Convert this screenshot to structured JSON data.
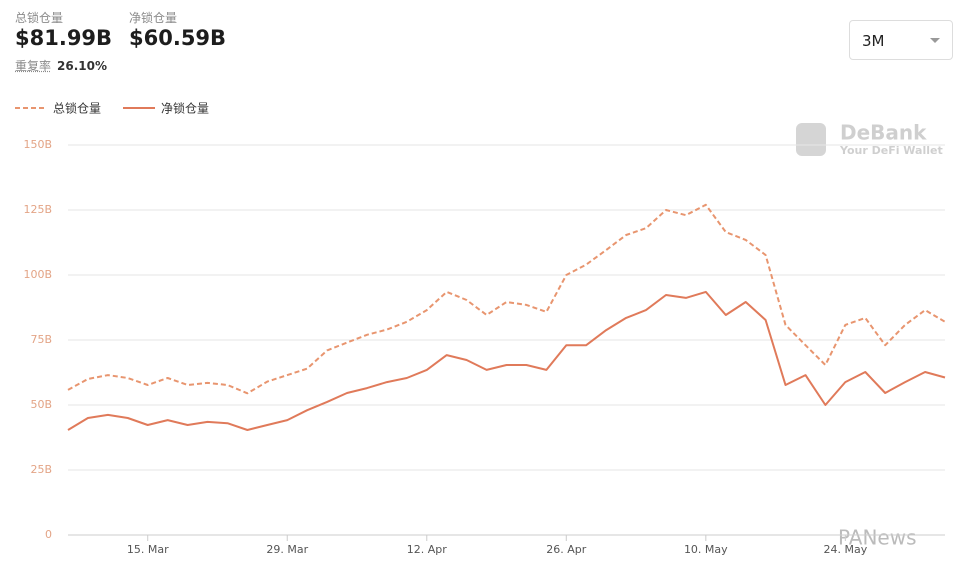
{
  "header": {
    "total_label": "总锁仓量",
    "total_value": "$81.99B",
    "net_label": "净锁仓量",
    "net_value": "$60.59B",
    "dup_label": "重复率",
    "dup_value": "26.10%"
  },
  "controls": {
    "range": "3M"
  },
  "watermark": {
    "brand": "DeBank",
    "tagline": "Your DeFi Wallet",
    "source": "PANews"
  },
  "chart_data": {
    "type": "line",
    "categories": [
      null,
      null,
      null,
      null,
      "15. Mar",
      null,
      null,
      null,
      null,
      null,
      null,
      "29. Mar",
      null,
      null,
      null,
      null,
      null,
      null,
      "12. Apr",
      null,
      null,
      null,
      null,
      null,
      null,
      "26. Apr",
      null,
      null,
      null,
      null,
      null,
      null,
      "10. May",
      null,
      null,
      null,
      null,
      null,
      null,
      "24. May",
      null,
      null,
      null,
      null,
      null
    ],
    "series": [
      {
        "name": "总锁仓量",
        "color": "#e8956f",
        "dashed": true,
        "values": [
          55.8,
          60,
          61.5,
          60.4,
          57.7,
          60.4,
          57.7,
          58.5,
          57.7,
          54.5,
          59,
          61.5,
          64,
          71,
          74,
          77,
          79,
          82,
          86.5,
          93.5,
          90.4,
          84.6,
          89.6,
          88.5,
          85.8,
          100,
          104,
          109.6,
          115.4,
          118,
          125,
          123,
          127,
          116.5,
          113.5,
          107.7,
          80.8,
          73,
          65.4,
          80.8,
          83.5,
          73,
          80.8,
          86.5,
          81.99
        ]
      },
      {
        "name": "净锁仓量",
        "color": "#e07a5a",
        "dashed": false,
        "values": [
          40.4,
          45,
          46.2,
          45,
          42.3,
          44.2,
          42.3,
          43.5,
          43,
          40.4,
          42.3,
          44.2,
          48,
          51.2,
          54.6,
          56.5,
          58.8,
          60.4,
          63.5,
          69.2,
          67.3,
          63.5,
          65.4,
          65.4,
          63.5,
          73,
          73,
          78.8,
          83.5,
          86.5,
          92.3,
          91.2,
          93.5,
          84.6,
          89.6,
          82.7,
          57.7,
          61.5,
          50,
          58.8,
          62.7,
          54.6,
          58.8,
          62.7,
          60.59
        ]
      }
    ],
    "ylim": [
      0,
      150
    ],
    "yticks": [
      0,
      {
        "value": 25,
        "label": "25B"
      },
      {
        "value": 50,
        "label": "50B"
      },
      {
        "value": 75,
        "label": "75B"
      },
      {
        "value": 100,
        "label": "100B"
      },
      {
        "value": 125,
        "label": "125B"
      },
      {
        "value": 150,
        "label": "150B"
      }
    ],
    "grid": true
  }
}
